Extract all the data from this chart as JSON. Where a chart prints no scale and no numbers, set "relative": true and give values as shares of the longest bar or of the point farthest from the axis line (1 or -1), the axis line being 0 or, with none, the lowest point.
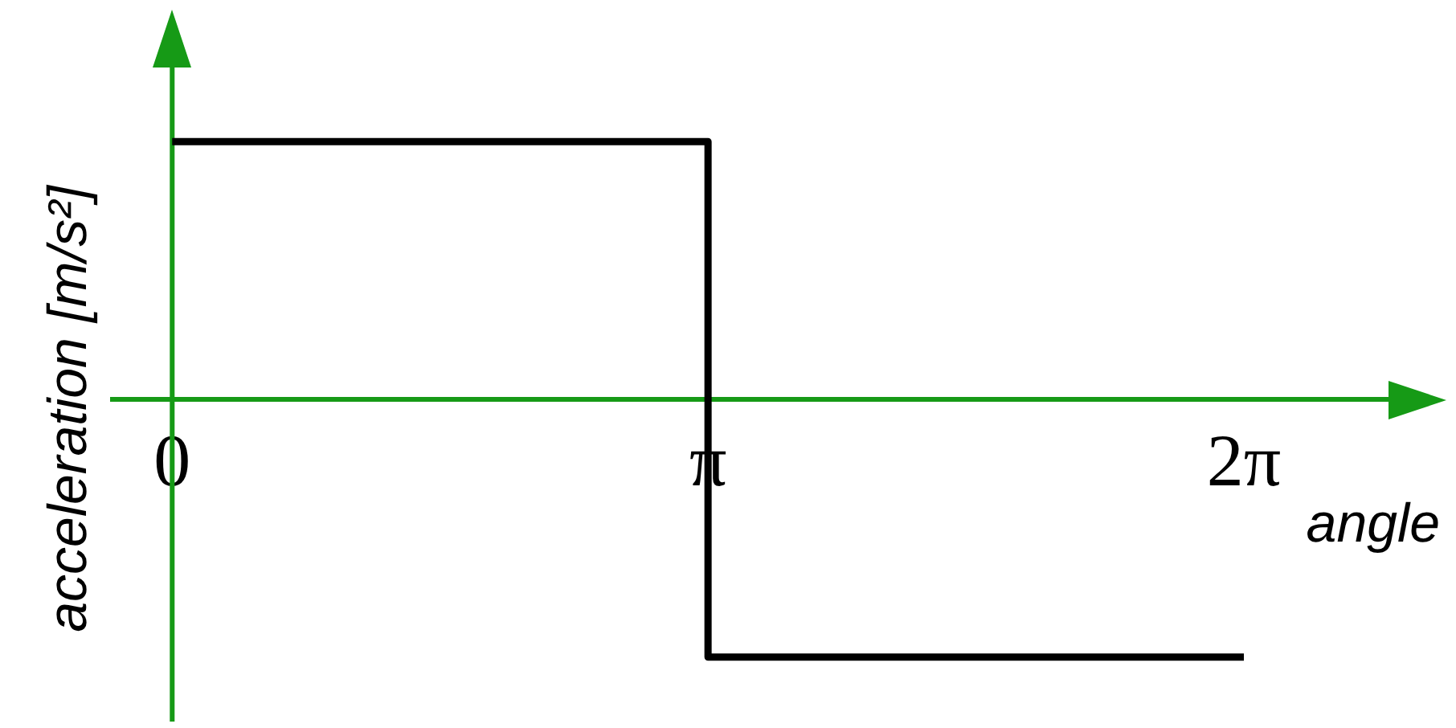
{
  "chart_data": {
    "type": "step",
    "xlabel": "angle",
    "ylabel": "acceleration [m/s²]",
    "relative": true,
    "marker": "none",
    "x": [
      0,
      3.14159,
      6.28318
    ],
    "values": [
      1,
      -1,
      -1
    ],
    "color": "#000000",
    "ref_lines": [
      {
        "axis": "x",
        "value": 0,
        "color": "#169a16"
      }
    ],
    "xlim": [
      -0.35,
      7.15
    ],
    "xticks": [
      {
        "value": 0,
        "label": "0"
      },
      {
        "value": 3.14159,
        "label": "π"
      },
      {
        "value": 6.28318,
        "label": "2π"
      }
    ]
  }
}
